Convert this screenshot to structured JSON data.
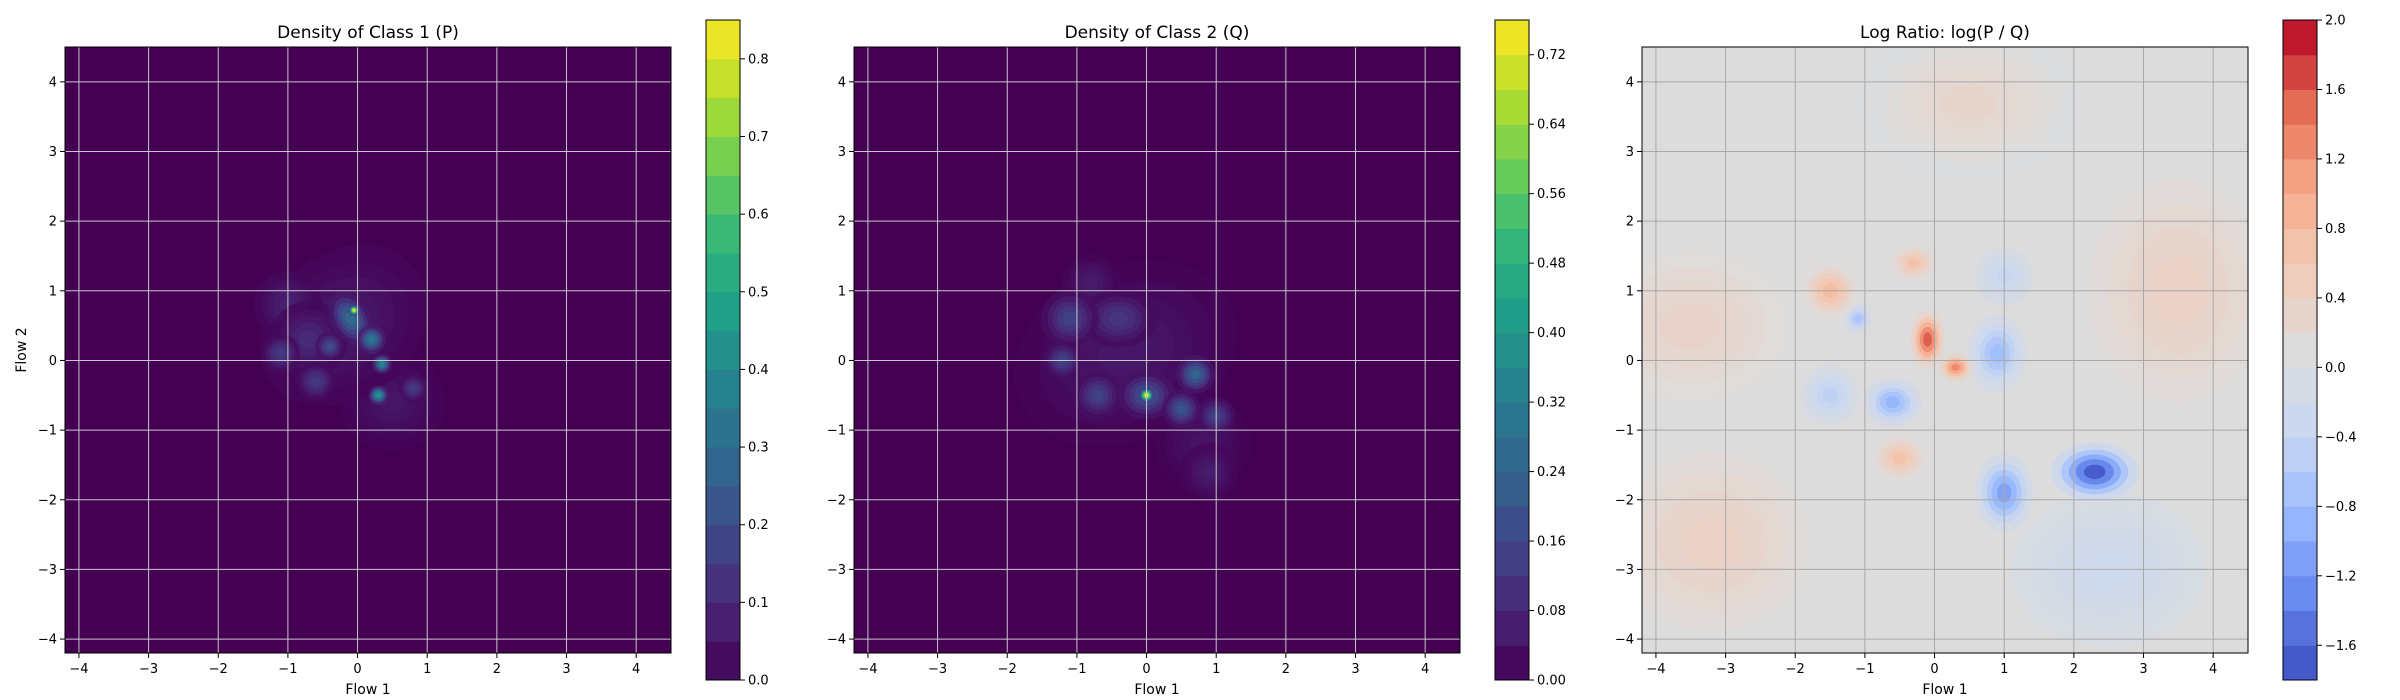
{
  "chart_data": [
    {
      "type": "heatmap",
      "title": "Density of Class 1 (P)",
      "xlabel": "Flow 1",
      "ylabel": "Flow 2",
      "xlim": [
        -4.2,
        4.5
      ],
      "ylim": [
        -4.2,
        4.5
      ],
      "xticks": [
        "−4",
        "−3",
        "−2",
        "−1",
        "0",
        "1",
        "2",
        "3",
        "4"
      ],
      "yticks": [
        "−4",
        "−3",
        "−2",
        "−1",
        "0",
        "1",
        "2",
        "3",
        "4"
      ],
      "grid": true,
      "colormap": "viridis",
      "background_color": "#440154",
      "colorbar": {
        "min": 0.0,
        "max": 0.85,
        "levels": 17,
        "ticks": [
          0.0,
          0.1,
          0.2,
          0.3,
          0.4,
          0.5,
          0.6,
          0.7,
          0.8
        ],
        "tick_labels": [
          "0.0",
          "0.1",
          "0.2",
          "0.3",
          "0.4",
          "0.5",
          "0.6",
          "0.7",
          "0.8"
        ]
      },
      "blobs": [
        {
          "x": -0.2,
          "y": 0.5,
          "sx": 0.95,
          "sy": 0.75,
          "rot": -40,
          "v": 0.06
        },
        {
          "x": 0.5,
          "y": -0.6,
          "sx": 0.55,
          "sy": 0.5,
          "rot": 0,
          "v": 0.05
        },
        {
          "x": -1.0,
          "y": 0.8,
          "sx": 0.35,
          "sy": 0.35,
          "rot": 0,
          "v": 0.08
        },
        {
          "x": -0.7,
          "y": 0.3,
          "sx": 0.4,
          "sy": 0.4,
          "rot": 0,
          "v": 0.1
        },
        {
          "x": -0.1,
          "y": 0.6,
          "sx": 0.2,
          "sy": 0.3,
          "rot": -30,
          "v": 0.3
        },
        {
          "x": -0.05,
          "y": 0.72,
          "sx": 0.06,
          "sy": 0.06,
          "rot": 0,
          "v": 0.82
        },
        {
          "x": 0.2,
          "y": 0.3,
          "sx": 0.15,
          "sy": 0.15,
          "rot": 0,
          "v": 0.35
        },
        {
          "x": 0.35,
          "y": -0.05,
          "sx": 0.1,
          "sy": 0.1,
          "rot": 0,
          "v": 0.4
        },
        {
          "x": 0.3,
          "y": -0.5,
          "sx": 0.1,
          "sy": 0.1,
          "rot": 0,
          "v": 0.45
        },
        {
          "x": -0.4,
          "y": 0.2,
          "sx": 0.15,
          "sy": 0.15,
          "rot": 0,
          "v": 0.2
        },
        {
          "x": -1.1,
          "y": 0.1,
          "sx": 0.2,
          "sy": 0.2,
          "rot": 0,
          "v": 0.15
        },
        {
          "x": -0.6,
          "y": -0.3,
          "sx": 0.2,
          "sy": 0.2,
          "rot": 0,
          "v": 0.15
        },
        {
          "x": 0.8,
          "y": -0.4,
          "sx": 0.15,
          "sy": 0.15,
          "rot": 0,
          "v": 0.15
        }
      ]
    },
    {
      "type": "heatmap",
      "title": "Density of Class 2 (Q)",
      "xlabel": "Flow 1",
      "ylabel": "",
      "xlim": [
        -4.2,
        4.5
      ],
      "ylim": [
        -4.2,
        4.5
      ],
      "xticks": [
        "−4",
        "−3",
        "−2",
        "−1",
        "0",
        "1",
        "2",
        "3",
        "4"
      ],
      "yticks": [
        "−4",
        "−3",
        "−2",
        "−1",
        "0",
        "1",
        "2",
        "3",
        "4"
      ],
      "grid": true,
      "colormap": "viridis",
      "background_color": "#440154",
      "colorbar": {
        "min": 0.0,
        "max": 0.76,
        "levels": 19,
        "ticks": [
          0.0,
          0.08,
          0.16,
          0.24,
          0.32,
          0.4,
          0.48,
          0.56,
          0.64,
          0.72
        ],
        "tick_labels": [
          "0.00",
          "0.08",
          "0.16",
          "0.24",
          "0.32",
          "0.40",
          "0.48",
          "0.56",
          "0.64",
          "0.72"
        ]
      },
      "blobs": [
        {
          "x": -0.3,
          "y": 0.1,
          "sx": 1.2,
          "sy": 0.9,
          "rot": -25,
          "v": 0.05
        },
        {
          "x": 0.8,
          "y": -1.2,
          "sx": 0.5,
          "sy": 0.5,
          "rot": 0,
          "v": 0.04
        },
        {
          "x": -1.1,
          "y": 0.6,
          "sx": 0.3,
          "sy": 0.3,
          "rot": 0,
          "v": 0.15
        },
        {
          "x": -0.4,
          "y": 0.6,
          "sx": 0.4,
          "sy": 0.3,
          "rot": 0,
          "v": 0.12
        },
        {
          "x": -0.7,
          "y": -0.5,
          "sx": 0.25,
          "sy": 0.25,
          "rot": 0,
          "v": 0.15
        },
        {
          "x": 0.0,
          "y": -0.5,
          "sx": 0.08,
          "sy": 0.08,
          "rot": 0,
          "v": 0.75
        },
        {
          "x": 0.0,
          "y": -0.5,
          "sx": 0.3,
          "sy": 0.25,
          "rot": 0,
          "v": 0.2
        },
        {
          "x": 0.7,
          "y": -0.2,
          "sx": 0.2,
          "sy": 0.2,
          "rot": 0,
          "v": 0.25
        },
        {
          "x": 0.5,
          "y": -0.7,
          "sx": 0.2,
          "sy": 0.2,
          "rot": 0,
          "v": 0.2
        },
        {
          "x": -1.2,
          "y": 0.0,
          "sx": 0.2,
          "sy": 0.2,
          "rot": 0,
          "v": 0.15
        },
        {
          "x": 1.0,
          "y": -0.8,
          "sx": 0.2,
          "sy": 0.2,
          "rot": 0,
          "v": 0.15
        },
        {
          "x": 0.9,
          "y": -1.6,
          "sx": 0.3,
          "sy": 0.3,
          "rot": 0,
          "v": 0.06
        },
        {
          "x": -0.8,
          "y": 1.1,
          "sx": 0.3,
          "sy": 0.3,
          "rot": 0,
          "v": 0.06
        }
      ]
    },
    {
      "type": "heatmap",
      "title": "Log Ratio: log(P / Q)",
      "xlabel": "Flow 1",
      "ylabel": "",
      "xlim": [
        -4.2,
        4.5
      ],
      "ylim": [
        -4.2,
        4.5
      ],
      "xticks": [
        "−4",
        "−3",
        "−2",
        "−1",
        "0",
        "1",
        "2",
        "3",
        "4"
      ],
      "yticks": [
        "−4",
        "−3",
        "−2",
        "−1",
        "0",
        "1",
        "2",
        "3",
        "4"
      ],
      "grid": true,
      "colormap": "coolwarm",
      "background_color": "#dcdcdc",
      "colorbar": {
        "min": -1.8,
        "max": 2.0,
        "levels": 19,
        "ticks": [
          -1.6,
          -1.2,
          -0.8,
          -0.4,
          0.0,
          0.4,
          0.8,
          1.2,
          1.6,
          2.0
        ],
        "tick_labels": [
          "−1.6",
          "−1.2",
          "−0.8",
          "−0.4",
          "0.0",
          "0.4",
          "0.8",
          "1.2",
          "1.6",
          "2.0"
        ]
      },
      "blobs": [
        {
          "x": -3.5,
          "y": 0.5,
          "sx": 1.3,
          "sy": 1.0,
          "rot": 0,
          "v": 0.35
        },
        {
          "x": 3.5,
          "y": 1.0,
          "sx": 1.2,
          "sy": 1.5,
          "rot": 0,
          "v": 0.4
        },
        {
          "x": -3.2,
          "y": -2.6,
          "sx": 1.3,
          "sy": 1.2,
          "rot": 0,
          "v": 0.4
        },
        {
          "x": 0.5,
          "y": 3.7,
          "sx": 1.2,
          "sy": 0.8,
          "rot": 0,
          "v": 0.3
        },
        {
          "x": -1.5,
          "y": 1.0,
          "sx": 0.3,
          "sy": 0.3,
          "rot": 0,
          "v": 0.8
        },
        {
          "x": -0.3,
          "y": 1.4,
          "sx": 0.25,
          "sy": 0.2,
          "rot": 0,
          "v": 0.7
        },
        {
          "x": -0.1,
          "y": 0.3,
          "sx": 0.18,
          "sy": 0.3,
          "rot": 0,
          "v": 1.6
        },
        {
          "x": 0.3,
          "y": -0.1,
          "sx": 0.18,
          "sy": 0.15,
          "rot": 0,
          "v": 1.3
        },
        {
          "x": -0.5,
          "y": -1.4,
          "sx": 0.3,
          "sy": 0.25,
          "rot": 0,
          "v": 0.7
        },
        {
          "x": 0.9,
          "y": 0.1,
          "sx": 0.3,
          "sy": 0.4,
          "rot": 0,
          "v": -0.8
        },
        {
          "x": 1.0,
          "y": -1.9,
          "sx": 0.3,
          "sy": 0.4,
          "rot": 0,
          "v": -1.1
        },
        {
          "x": 2.3,
          "y": -1.6,
          "sx": 0.45,
          "sy": 0.3,
          "rot": 0,
          "v": -1.7
        },
        {
          "x": -0.6,
          "y": -0.6,
          "sx": 0.3,
          "sy": 0.25,
          "rot": 0,
          "v": -0.9
        },
        {
          "x": -1.1,
          "y": 0.6,
          "sx": 0.15,
          "sy": 0.15,
          "rot": 0,
          "v": -0.7
        },
        {
          "x": -1.5,
          "y": -0.5,
          "sx": 0.3,
          "sy": 0.3,
          "rot": 0,
          "v": -0.5
        },
        {
          "x": 1.0,
          "y": 1.2,
          "sx": 0.3,
          "sy": 0.3,
          "rot": 0,
          "v": -0.4
        },
        {
          "x": 2.5,
          "y": -3.0,
          "sx": 1.0,
          "sy": 0.8,
          "rot": 0,
          "v": -0.3
        }
      ]
    }
  ]
}
